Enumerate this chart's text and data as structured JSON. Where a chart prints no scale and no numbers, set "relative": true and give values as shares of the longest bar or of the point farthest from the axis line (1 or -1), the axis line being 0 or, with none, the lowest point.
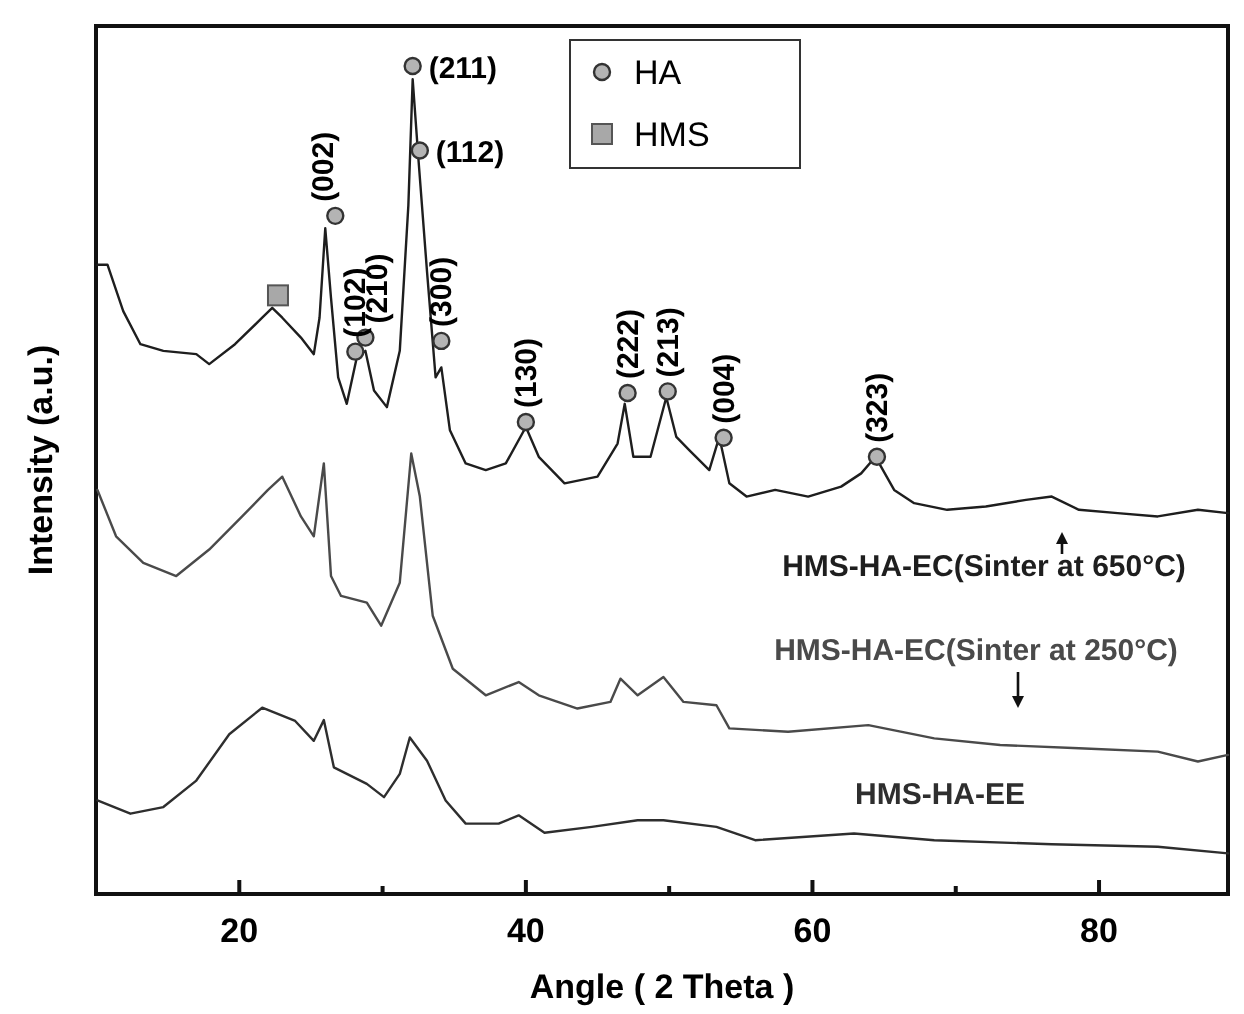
{
  "chart_data": {
    "type": "line",
    "relative": true,
    "xlabel": "Angle ( 2 Theta )",
    "ylabel": "Intensity (a.u.)",
    "xlim": [
      10,
      89
    ],
    "xticks": [
      20,
      40,
      60,
      80,
      {
        "value": 30,
        "label": null
      },
      {
        "value": 50,
        "label": null
      },
      {
        "value": 70,
        "label": null
      }
    ],
    "legend": "top",
    "grid": false,
    "series": [
      {
        "name": "HMS-HA-EC(Sinter at 650°C)",
        "color": "#1e1e1e",
        "x": [
          10.1,
          10.8,
          11.9,
          13.1,
          14.7,
          17.0,
          17.9,
          19.7,
          21.6,
          22.3,
          23.0,
          24.3,
          25.2,
          25.6,
          26.0,
          26.4,
          26.9,
          27.5,
          28.2,
          28.8,
          29.4,
          30.3,
          31.2,
          31.8,
          32.1,
          32.5,
          33.1,
          33.7,
          34.1,
          34.7,
          35.8,
          37.2,
          38.6,
          40.0,
          40.9,
          42.7,
          45.0,
          46.4,
          46.9,
          47.5,
          48.7,
          49.8,
          50.5,
          51.4,
          52.8,
          53.5,
          54.2,
          55.4,
          57.4,
          59.7,
          62.0,
          63.4,
          64.4,
          65.7,
          67.1,
          69.4,
          72.1,
          74.9,
          76.7,
          78.6,
          81.3,
          84.1,
          86.9,
          89.0
        ],
        "values": [
          0.76,
          0.76,
          0.704,
          0.664,
          0.656,
          0.652,
          0.64,
          0.664,
          0.696,
          0.708,
          0.696,
          0.672,
          0.652,
          0.696,
          0.804,
          0.72,
          0.624,
          0.592,
          0.648,
          0.656,
          0.608,
          0.588,
          0.656,
          0.832,
          0.984,
          0.888,
          0.752,
          0.624,
          0.636,
          0.56,
          0.52,
          0.512,
          0.52,
          0.564,
          0.528,
          0.496,
          0.504,
          0.544,
          0.592,
          0.528,
          0.528,
          0.6,
          0.552,
          0.536,
          0.512,
          0.552,
          0.496,
          0.48,
          0.488,
          0.48,
          0.492,
          0.508,
          0.528,
          0.488,
          0.472,
          0.464,
          0.468,
          0.476,
          0.48,
          0.464,
          0.46,
          0.456,
          0.464,
          0.46
        ]
      },
      {
        "name": "HMS-HA-EC(Sinter at 250°C)",
        "color": "#4a4a4a",
        "x": [
          10.1,
          11.4,
          13.3,
          15.6,
          17.9,
          20.2,
          22.0,
          23.0,
          24.3,
          25.2,
          25.9,
          26.4,
          27.1,
          28.9,
          29.9,
          31.2,
          32.0,
          32.6,
          33.5,
          34.9,
          37.2,
          39.5,
          40.9,
          43.6,
          45.9,
          46.6,
          47.8,
          49.6,
          51.0,
          53.3,
          54.2,
          58.3,
          63.9,
          68.5,
          73.1,
          78.6,
          84.1,
          86.9,
          89.0
        ],
        "values": [
          0.488,
          0.432,
          0.4,
          0.384,
          0.416,
          0.456,
          0.488,
          0.504,
          0.456,
          0.432,
          0.52,
          0.384,
          0.36,
          0.352,
          0.324,
          0.376,
          0.532,
          0.48,
          0.336,
          0.272,
          0.24,
          0.256,
          0.24,
          0.224,
          0.232,
          0.26,
          0.24,
          0.262,
          0.232,
          0.228,
          0.2,
          0.196,
          0.204,
          0.188,
          0.18,
          0.176,
          0.172,
          0.16,
          0.168
        ]
      },
      {
        "name": "HMS-HA-EE",
        "color": "#2e2e2e",
        "x": [
          10.1,
          12.4,
          14.7,
          17.0,
          19.3,
          21.6,
          23.9,
          25.2,
          25.9,
          26.6,
          28.9,
          30.1,
          31.2,
          31.9,
          33.1,
          34.4,
          35.8,
          38.1,
          39.5,
          41.3,
          44.6,
          47.8,
          49.6,
          53.3,
          56.0,
          62.9,
          68.5,
          76.7,
          84.1,
          89.0
        ],
        "values": [
          0.113,
          0.097,
          0.105,
          0.137,
          0.193,
          0.225,
          0.209,
          0.185,
          0.21,
          0.153,
          0.133,
          0.117,
          0.145,
          0.189,
          0.161,
          0.113,
          0.085,
          0.085,
          0.095,
          0.074,
          0.081,
          0.089,
          0.089,
          0.081,
          0.065,
          0.073,
          0.065,
          0.06,
          0.057,
          0.049
        ]
      },
      {
        "name": "HA",
        "type": "scatter",
        "marker": "circle",
        "color": "#b4b4b4",
        "x": [
          32.1,
          32.6,
          26.7,
          28.1,
          28.8,
          34.1,
          40.0,
          47.1,
          49.9,
          53.8,
          64.5
        ],
        "values": [
          1.0,
          0.898,
          0.819,
          0.655,
          0.672,
          0.668,
          0.57,
          0.605,
          0.607,
          0.551,
          0.528
        ]
      },
      {
        "name": "HMS",
        "type": "scatter",
        "marker": "square",
        "color": "#a8a8a8",
        "x": [
          22.7
        ],
        "values": [
          0.723
        ]
      }
    ],
    "annotations": [
      {
        "text": "(211)",
        "x": 32.1,
        "y": 1.0
      },
      {
        "text": "(112)",
        "x": 32.6,
        "y": 0.898
      },
      {
        "text": "(002)",
        "x": 26.7,
        "y": 0.819
      },
      {
        "text": "(102)",
        "x": 28.1,
        "y": 0.655
      },
      {
        "text": "(210)",
        "x": 28.8,
        "y": 0.672
      },
      {
        "text": "(300)",
        "x": 34.1,
        "y": 0.668
      },
      {
        "text": "(130)",
        "x": 40.0,
        "y": 0.57
      },
      {
        "text": "(222)",
        "x": 47.1,
        "y": 0.605
      },
      {
        "text": "(213)",
        "x": 49.9,
        "y": 0.607
      },
      {
        "text": "(004)",
        "x": 53.8,
        "y": 0.551
      },
      {
        "text": "(323)",
        "x": 64.5,
        "y": 0.528
      }
    ]
  }
}
